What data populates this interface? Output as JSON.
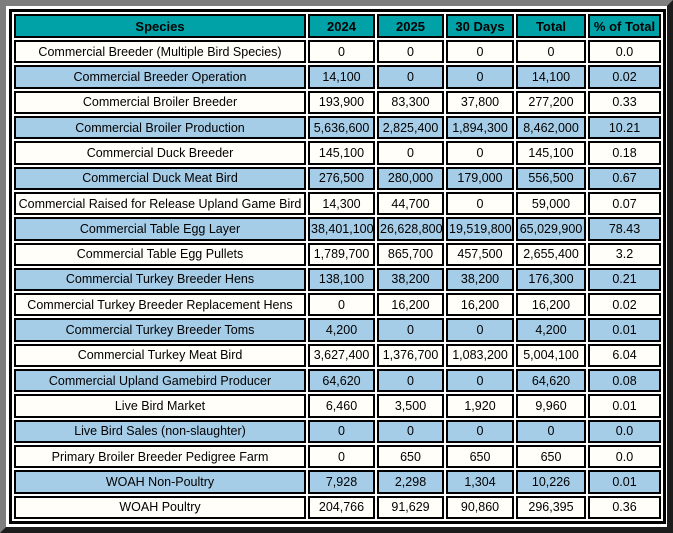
{
  "chart_data": {
    "type": "table",
    "columns": [
      "Species",
      "2024",
      "2025",
      "30 Days",
      "Total",
      "% of Total"
    ],
    "rows": [
      [
        "Commercial Breeder (Multiple Bird Species)",
        "0",
        "0",
        "0",
        "0",
        "0.0"
      ],
      [
        "Commercial Breeder Operation",
        "14,100",
        "0",
        "0",
        "14,100",
        "0.02"
      ],
      [
        "Commercial Broiler Breeder",
        "193,900",
        "83,300",
        "37,800",
        "277,200",
        "0.33"
      ],
      [
        "Commercial Broiler Production",
        "5,636,600",
        "2,825,400",
        "1,894,300",
        "8,462,000",
        "10.21"
      ],
      [
        "Commercial Duck Breeder",
        "145,100",
        "0",
        "0",
        "145,100",
        "0.18"
      ],
      [
        "Commercial Duck Meat Bird",
        "276,500",
        "280,000",
        "179,000",
        "556,500",
        "0.67"
      ],
      [
        "Commercial Raised for Release Upland Game Bird",
        "14,300",
        "44,700",
        "0",
        "59,000",
        "0.07"
      ],
      [
        "Commercial Table Egg Layer",
        "38,401,100",
        "26,628,800",
        "19,519,800",
        "65,029,900",
        "78.43"
      ],
      [
        "Commercial Table Egg Pullets",
        "1,789,700",
        "865,700",
        "457,500",
        "2,655,400",
        "3.2"
      ],
      [
        "Commercial Turkey Breeder Hens",
        "138,100",
        "38,200",
        "38,200",
        "176,300",
        "0.21"
      ],
      [
        "Commercial Turkey Breeder Replacement Hens",
        "0",
        "16,200",
        "16,200",
        "16,200",
        "0.02"
      ],
      [
        "Commercial Turkey Breeder Toms",
        "4,200",
        "0",
        "0",
        "4,200",
        "0.01"
      ],
      [
        "Commercial Turkey Meat Bird",
        "3,627,400",
        "1,376,700",
        "1,083,200",
        "5,004,100",
        "6.04"
      ],
      [
        "Commercial Upland Gamebird Producer",
        "64,620",
        "0",
        "0",
        "64,620",
        "0.08"
      ],
      [
        "Live Bird Market",
        "6,460",
        "3,500",
        "1,920",
        "9,960",
        "0.01"
      ],
      [
        "Live Bird Sales (non-slaughter)",
        "0",
        "0",
        "0",
        "0",
        "0.0"
      ],
      [
        "Primary Broiler Breeder Pedigree Farm",
        "0",
        "650",
        "650",
        "650",
        "0.0"
      ],
      [
        "WOAH Non-Poultry",
        "7,928",
        "2,298",
        "1,304",
        "10,226",
        "0.01"
      ],
      [
        "WOAH Poultry",
        "204,766",
        "91,629",
        "90,860",
        "296,395",
        "0.36"
      ]
    ]
  },
  "colors": {
    "header_bg": "#00a2a8",
    "alt_row_bg": "#a6cde8",
    "row_bg": "#fffef8",
    "cell_border": "#000000",
    "frame_light": "#7e7e7e",
    "frame_dark": "#1c1c1c"
  }
}
